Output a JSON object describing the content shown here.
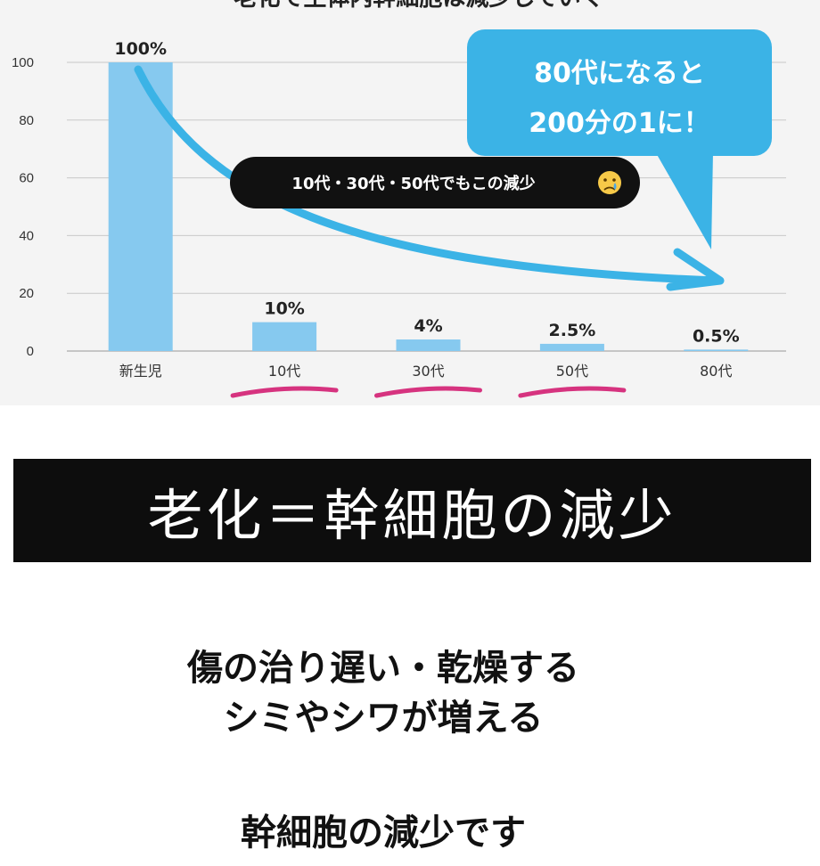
{
  "chart_data": {
    "type": "bar",
    "title": "老化で生体内幹細胞は減少していく",
    "categories": [
      "新生児",
      "10代",
      "30代",
      "50代",
      "80代"
    ],
    "values": [
      100,
      10,
      4,
      2.5,
      0.5
    ],
    "value_labels": [
      "100%",
      "10%",
      "4%",
      "2.5%",
      "0.5%"
    ],
    "ylim": [
      0,
      100
    ],
    "yticks": [
      0,
      20,
      40,
      60,
      80,
      100
    ],
    "grid": true,
    "bar_color": "#86c9ef",
    "underlined_categories": [
      "10代",
      "30代",
      "50代"
    ],
    "annotations": {
      "callout": [
        "80代になると",
        "200分の1に！"
      ],
      "note": "10代・30代・50代でもこの減少"
    }
  },
  "colors": {
    "accent_blue": "#3bb3e6",
    "underline_pink": "#d6337f",
    "banner_bg": "#0d0d0d"
  },
  "banner": {
    "text": "老化＝幹細胞の減少"
  },
  "symptoms": {
    "line1": "傷の治り遅い・乾燥する",
    "line2": "シミやシワが増える"
  },
  "bottom": {
    "text": "幹細胞の減少です"
  },
  "icons": {
    "note_emoji": "crying-face-icon"
  }
}
